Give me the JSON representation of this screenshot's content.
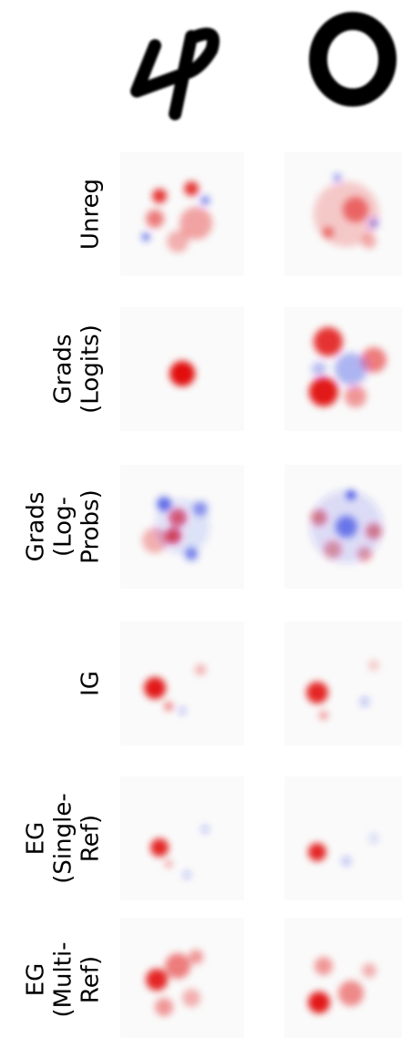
{
  "rows": [
    {
      "label": [
        "Unreg"
      ]
    },
    {
      "label": [
        "Grads",
        "(Logits)"
      ]
    },
    {
      "label": [
        "Grads",
        "(Log-",
        "Probs)"
      ]
    },
    {
      "label": [
        "IG"
      ]
    },
    {
      "label": [
        "EG",
        "(Single-",
        "Ref)"
      ]
    },
    {
      "label": [
        "EG",
        "(Multi-",
        "Ref)"
      ]
    }
  ]
}
